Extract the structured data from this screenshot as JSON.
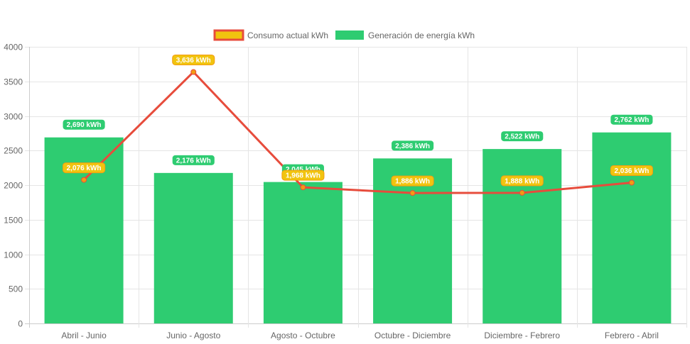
{
  "chart_data": {
    "type": "bar",
    "categories": [
      "Abril - Junio",
      "Junio - Agosto",
      "Agosto - Octubre",
      "Octubre - Diciembre",
      "Diciembre - Febrero",
      "Febrero - Abril"
    ],
    "series": [
      {
        "name": "Consumo actual kWh",
        "type": "line",
        "color": "#e74c3c",
        "point_color": "#f39c12",
        "label_color": "#f1c40f",
        "values": [
          2076,
          3636,
          1968,
          1886,
          1888,
          2036
        ],
        "labels": [
          "2,076 kWh",
          "3,636 kWh",
          "1,968 kWh",
          "1,886 kWh",
          "1,888 kWh",
          "2,036 kWh"
        ]
      },
      {
        "name": "Generación de energía kWh",
        "type": "bar",
        "color": "#2ecc71",
        "values": [
          2690,
          2176,
          2045,
          2386,
          2522,
          2762
        ],
        "labels": [
          "2,690 kWh",
          "2,176 kWh",
          "2,045 kWh",
          "2,386 kWh",
          "2,522 kWh",
          "2,762 kWh"
        ]
      }
    ],
    "ylim": [
      0,
      4000
    ],
    "yticks": [
      "0",
      "500",
      "1000",
      "1500",
      "2000",
      "2500",
      "3000",
      "3500",
      "4000"
    ],
    "grid": true,
    "legend": "top-center"
  }
}
